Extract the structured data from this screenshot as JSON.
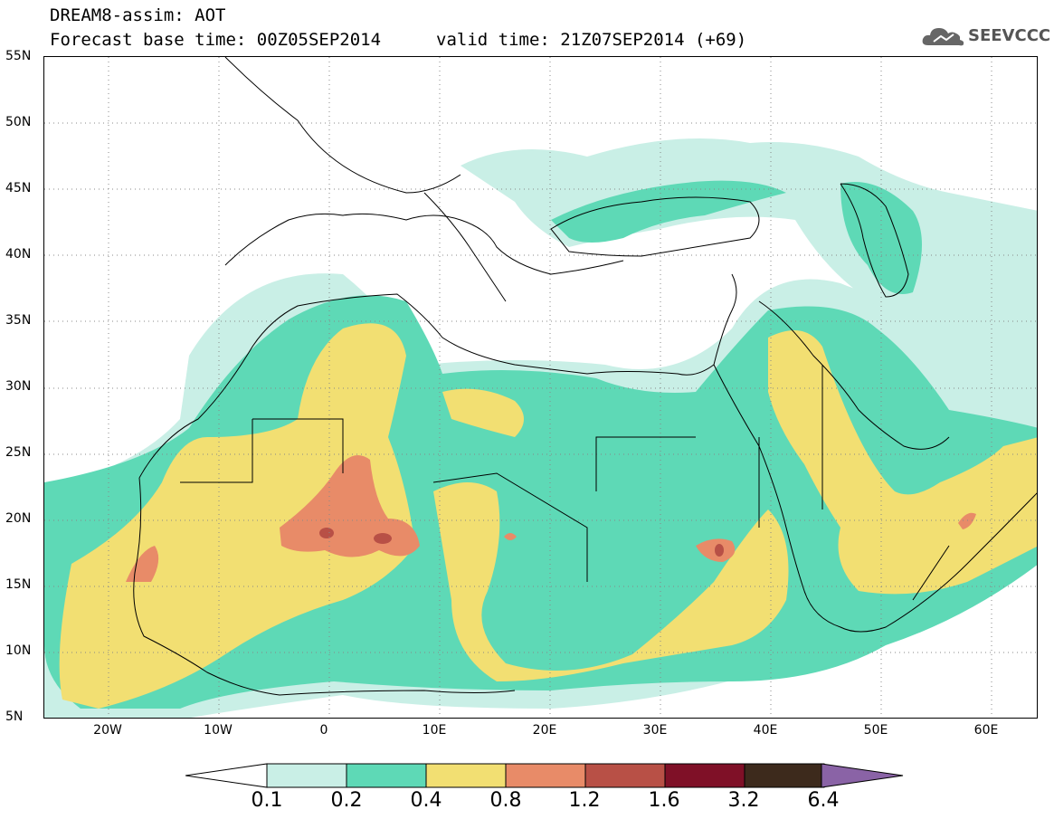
{
  "title": {
    "line1": "DREAM8-assim: AOT",
    "line2": "Forecast base time: 00Z05SEP2014",
    "valid": "valid time: 21Z07SEP2014 (+69)"
  },
  "logo": {
    "text": "SEEVCCC",
    "icon": "cloud-icon"
  },
  "axes": {
    "lat_labels": [
      "55N",
      "50N",
      "45N",
      "40N",
      "35N",
      "30N",
      "25N",
      "20N",
      "15N",
      "10N",
      "5N"
    ],
    "lon_labels": [
      "20W",
      "10W",
      "0",
      "10E",
      "20E",
      "30E",
      "40E",
      "50E",
      "60E"
    ],
    "lat_range": [
      5,
      55
    ],
    "lon_range": [
      -25,
      65
    ],
    "grid": true
  },
  "colorbar": {
    "labels": [
      "0.1",
      "0.2",
      "0.4",
      "0.8",
      "1.2",
      "1.6",
      "3.2",
      "6.4"
    ],
    "colors": [
      "#c9efe6",
      "#5ed9b6",
      "#f2df72",
      "#e88b68",
      "#b85046",
      "#7f1027",
      "#3d2a1c"
    ],
    "over_color": "#8a63a6",
    "under_color": "#ffffff"
  },
  "colors": {
    "background": "#ffffff",
    "land_outline": "#000000",
    "grid": "#888888"
  }
}
